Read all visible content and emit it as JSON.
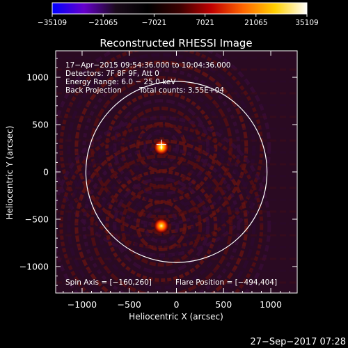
{
  "chart_data": {
    "type": "heatmap",
    "title": "Reconstructed RHESSI Image",
    "xlabel": "Heliocentric X (arcsec)",
    "ylabel": "Heliocentric Y (arcsec)",
    "xlim": [
      -1280,
      1280
    ],
    "ylim": [
      -1280,
      1280
    ],
    "x_ticks": [
      -1000,
      -500,
      0,
      500,
      1000
    ],
    "x_tick_labels": [
      "−1000",
      "−500",
      "0",
      "500",
      "1000"
    ],
    "y_ticks": [
      -1000,
      -500,
      0,
      500,
      1000
    ],
    "y_tick_labels": [
      "−1000",
      "−500",
      "0",
      "500",
      "1000"
    ],
    "colorbar": {
      "min": -35109,
      "max": 35109,
      "ticks": [
        -35109,
        -21065,
        -7021,
        7021,
        21065,
        35109
      ],
      "tick_labels": [
        "−35109",
        "−21065",
        "−7021",
        "7021",
        "21065",
        "35109"
      ],
      "colors": [
        "#0000ff",
        "#6600cc",
        "#1a0a1a",
        "#000000",
        "#3a0000",
        "#c00000",
        "#ff6600",
        "#ffd000",
        "#ffffff"
      ]
    },
    "annotations": [
      "17−Apr−2015 09:54:36.000 to 10:04:36.000",
      "Detectors: 7F 8F 9F, Att 0",
      "Energy Range: 6.0 − 25.0 keV",
      "Back Projection",
      "Total counts: 3.55E+04"
    ],
    "spin_axis": "Spin Axis = [−160,260]",
    "flare_position": "Flare Position = [−494,404]",
    "sources": [
      {
        "x": -160,
        "y": 260,
        "intensity": 35109
      },
      {
        "x": -160,
        "y": -570,
        "intensity": 30000
      }
    ],
    "solar_limb_radius": 960,
    "footer_timestamp": "27−Sep−2017 07:28"
  }
}
